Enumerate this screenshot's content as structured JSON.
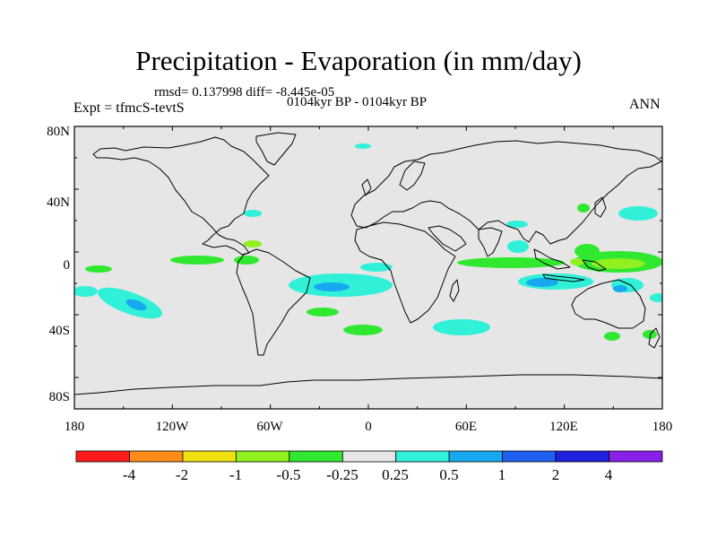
{
  "header": {
    "title": "Precipitation - Evaporation (in mm/day)",
    "stats": "rmsd= 0.137998 diff= -8.445e-05",
    "period": "0104kyr BP - 0104kyr BP",
    "experiment": "Expt = tfmcS-tevtS",
    "season": "ANN"
  },
  "axes": {
    "y_ticks": [
      "80N",
      "40N",
      "0",
      "40S",
      "80S"
    ],
    "x_ticks": [
      "180",
      "120W",
      "60W",
      "0",
      "60E",
      "120E",
      "180"
    ]
  },
  "colorbar": {
    "labels": [
      "-4",
      "-2",
      "-1",
      "-0.5",
      "-0.25",
      "0.25",
      "0.5",
      "1",
      "2",
      "4"
    ],
    "colors": [
      "#ff1a1a",
      "#ff8c1a",
      "#f0e010",
      "#90f020",
      "#30e830",
      "#e6e6e6",
      "#30f0d8",
      "#18a8f0",
      "#2060f0",
      "#2020e0",
      "#8820e8"
    ]
  },
  "map": {
    "background_color": "#e6e6e6",
    "lon_range": [
      -180,
      180
    ],
    "lat_range": [
      -90,
      90
    ]
  }
}
